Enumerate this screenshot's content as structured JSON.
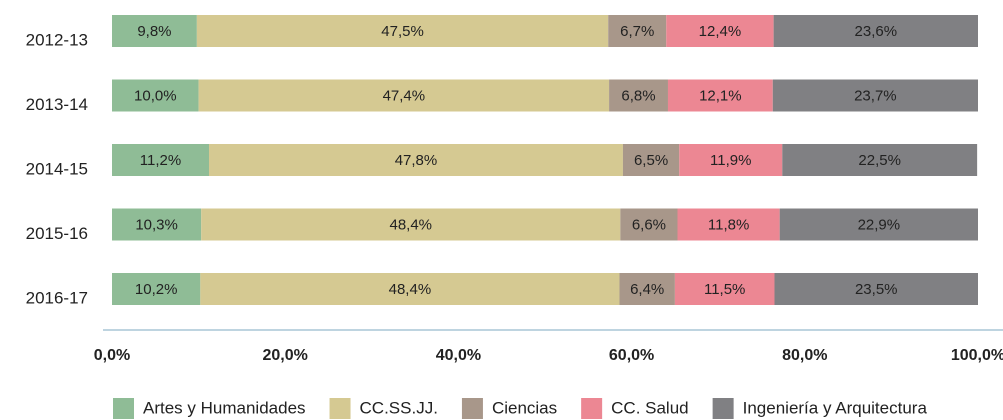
{
  "chart_data": {
    "type": "stacked_bar_horizontal",
    "categories": [
      "2012-13",
      "2013-14",
      "2014-15",
      "2015-16",
      "2016-17"
    ],
    "series": [
      {
        "name": "Artes y Humanidades",
        "color": "#8fbc96",
        "values": [
          9.8,
          10.0,
          11.2,
          10.3,
          10.2
        ],
        "value_labels": [
          "9,8%",
          "10,0%",
          "11,2%",
          "10,3%",
          "10,2%"
        ]
      },
      {
        "name": "CC.SS.JJ.",
        "color": "#d5c992",
        "values": [
          47.5,
          47.4,
          47.8,
          48.4,
          48.4
        ],
        "value_labels": [
          "47,5%",
          "47,4%",
          "47,8%",
          "48,4%",
          "48,4%"
        ]
      },
      {
        "name": "Ciencias",
        "color": "#a8978a",
        "values": [
          6.7,
          6.8,
          6.5,
          6.6,
          6.4
        ],
        "value_labels": [
          "6,7%",
          "6,8%",
          "6,5%",
          "6,6%",
          "6,4%"
        ]
      },
      {
        "name": "CC. Salud",
        "color": "#ec8793",
        "values": [
          12.4,
          12.1,
          11.9,
          11.8,
          11.5
        ],
        "value_labels": [
          "12,4%",
          "12,1%",
          "11,9%",
          "11,8%",
          "11,5%"
        ]
      },
      {
        "name": "Ingeniería y Arquitectura",
        "color": "#808083",
        "values": [
          23.6,
          23.7,
          22.5,
          22.9,
          23.5
        ],
        "value_labels": [
          "23,6%",
          "23,7%",
          "22,5%",
          "22,9%",
          "23,5%"
        ]
      }
    ],
    "xlim": [
      0,
      100
    ],
    "xticks": [
      {
        "value": 0,
        "label": "0,0%"
      },
      {
        "value": 20,
        "label": "20,0%"
      },
      {
        "value": 40,
        "label": "40,0%"
      },
      {
        "value": 60,
        "label": "60,0%"
      },
      {
        "value": 80,
        "label": "80,0%"
      },
      {
        "value": 100,
        "label": "100,0%"
      }
    ],
    "grid": false,
    "legend": "bottom"
  }
}
